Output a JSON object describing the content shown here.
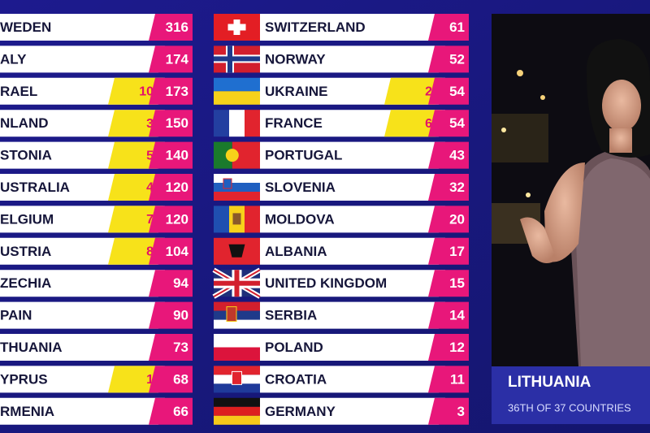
{
  "left": {
    "rows": [
      {
        "country": "WEDEN",
        "total": 316
      },
      {
        "country": "ALY",
        "total": 174
      },
      {
        "country": "RAEL",
        "points": 10,
        "total": 173
      },
      {
        "country": "NLAND",
        "points": 3,
        "total": 150
      },
      {
        "country": "STONIA",
        "points": 5,
        "total": 140
      },
      {
        "country": "USTRALIA",
        "points": 4,
        "total": 120
      },
      {
        "country": "ELGIUM",
        "points": 7,
        "total": 120
      },
      {
        "country": "USTRIA",
        "points": 8,
        "total": 104
      },
      {
        "country": "ZECHIA",
        "total": 94
      },
      {
        "country": "PAIN",
        "total": 90
      },
      {
        "country": "THUANIA",
        "total": 73
      },
      {
        "country": "YPRUS",
        "points": 1,
        "total": 68
      },
      {
        "country": "RMENIA",
        "total": 66
      }
    ]
  },
  "right": {
    "rows": [
      {
        "country": "SWITZERLAND",
        "total": 61
      },
      {
        "country": "NORWAY",
        "total": 52
      },
      {
        "country": "UKRAINE",
        "points": 2,
        "total": 54
      },
      {
        "country": "FRANCE",
        "points": 6,
        "total": 54
      },
      {
        "country": "PORTUGAL",
        "total": 43
      },
      {
        "country": "SLOVENIA",
        "total": 32
      },
      {
        "country": "MOLDOVA",
        "total": 20
      },
      {
        "country": "ALBANIA",
        "total": 17
      },
      {
        "country": "UNITED KINGDOM",
        "total": 15
      },
      {
        "country": "SERBIA",
        "total": 14
      },
      {
        "country": "POLAND",
        "total": 12
      },
      {
        "country": "CROATIA",
        "total": 11
      },
      {
        "country": "GERMANY",
        "total": 3
      }
    ]
  },
  "spokesperson": {
    "country": "LITHUANIA",
    "rank": "36TH OF 37 COUNTRIES"
  }
}
